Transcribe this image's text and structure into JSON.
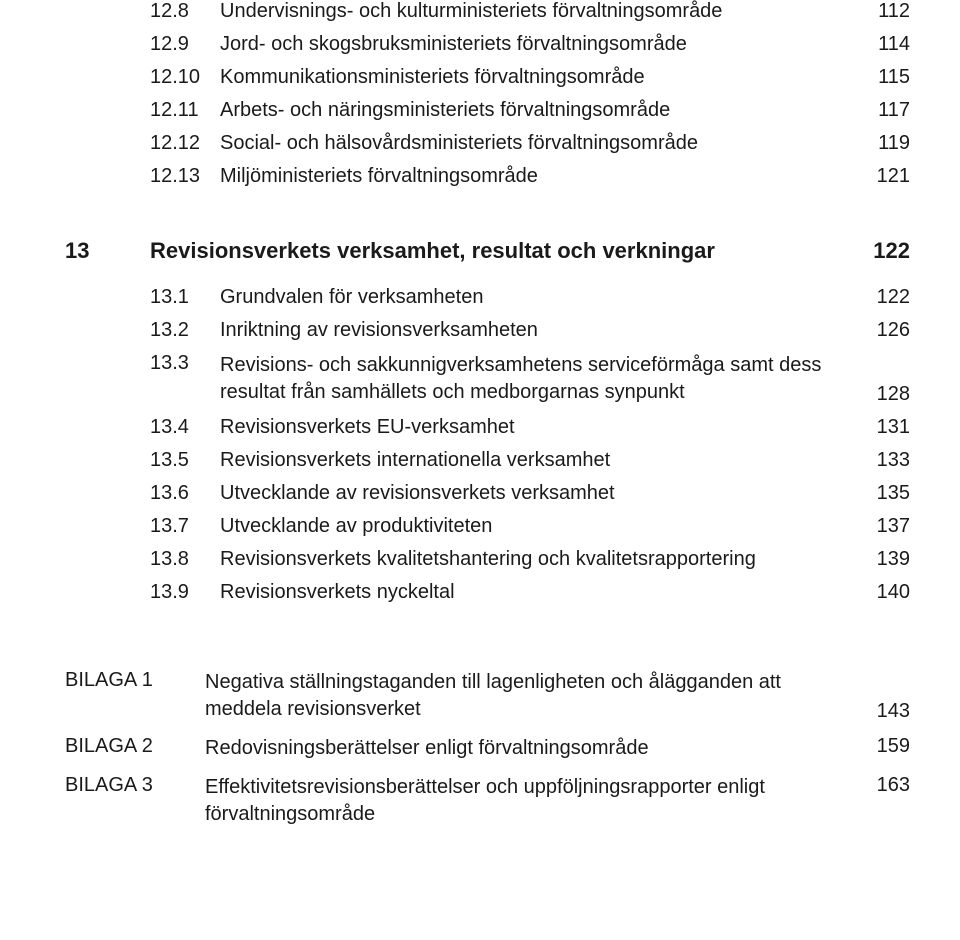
{
  "section12": [
    {
      "num": "12.8",
      "title": "Undervisnings- och kulturministeriets förvaltningsområde",
      "page": "112"
    },
    {
      "num": "12.9",
      "title": "Jord- och skogsbruksministeriets förvaltningsområde",
      "page": "114"
    },
    {
      "num": "12.10",
      "title": "Kommunikationsministeriets förvaltningsområde",
      "page": "115"
    },
    {
      "num": "12.11",
      "title": "Arbets- och näringsministeriets förvaltningsområde",
      "page": "117"
    },
    {
      "num": "12.12",
      "title": "Social- och hälsovårdsministeriets förvaltningsområde",
      "page": "119"
    },
    {
      "num": "12.13",
      "title": "Miljöministeriets förvaltningsområde",
      "page": "121"
    }
  ],
  "section13_heading": {
    "num": "13",
    "title": "Revisionsverkets verksamhet, resultat och verkningar",
    "page": "122"
  },
  "section13": [
    {
      "num": "13.1",
      "title": "Grundvalen för verksamheten",
      "page": "122"
    },
    {
      "num": "13.2",
      "title": "Inriktning av revisionsverksamheten",
      "page": "126"
    },
    {
      "num": "13.3",
      "title": "Revisions- och sakkunnigverksamhetens serviceförmåga samt dess resultat från samhällets och medborgarnas synpunkt",
      "page": "128"
    },
    {
      "num": "13.4",
      "title": "Revisionsverkets EU-verksamhet",
      "page": "131"
    },
    {
      "num": "13.5",
      "title": "Revisionsverkets internationella verksamhet",
      "page": "133"
    },
    {
      "num": "13.6",
      "title": "Utvecklande av revisionsverkets verksamhet",
      "page": "135"
    },
    {
      "num": "13.7",
      "title": "Utvecklande av produktiviteten",
      "page": "137"
    },
    {
      "num": "13.8",
      "title": "Revisionsverkets kvalitetshantering och kvalitetsrapportering",
      "page": "139"
    },
    {
      "num": "13.9",
      "title": "Revisionsverkets nyckeltal",
      "page": "140"
    }
  ],
  "bilaga": [
    {
      "label": "BILAGA 1",
      "title": "Negativa ställningstaganden till lagenligheten och ålägganden att meddela revisionsverket",
      "page": "143"
    },
    {
      "label": "BILAGA 2",
      "title": "Redovisningsberättelser enligt förvaltningsområde",
      "page": "159"
    },
    {
      "label": "BILAGA 3",
      "title": "Effektivitetsrevisionsberättelser och uppföljningsrapporter enligt förvaltningsområde",
      "page": "163"
    }
  ],
  "colors": {
    "text": "#1a1a1a",
    "background": "#ffffff"
  },
  "typography": {
    "body_fontsize": 20,
    "heading_fontsize": 22,
    "heading_weight": "700",
    "body_weight": "400"
  }
}
